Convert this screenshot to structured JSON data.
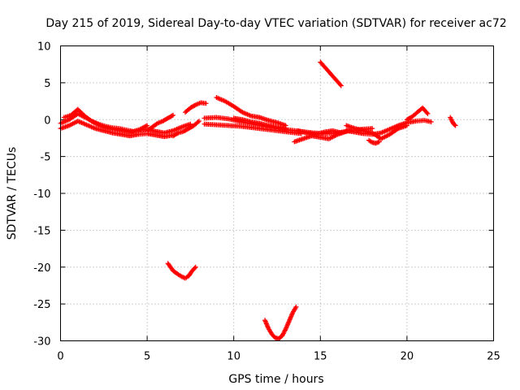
{
  "chart_data": {
    "type": "scatter",
    "title": "Day 215 of 2019, Sidereal Day-to-day VTEC variation (SDTVAR) for receiver ac72",
    "xlabel": "GPS time / hours",
    "ylabel": "SDTVAR / TECUs",
    "xlim": [
      0,
      25
    ],
    "ylim": [
      -30,
      10
    ],
    "xticks": [
      0,
      5,
      10,
      15,
      20,
      25
    ],
    "yticks": [
      -30,
      -25,
      -20,
      -15,
      -10,
      -5,
      0,
      5,
      10
    ],
    "grid": true,
    "marker": "+",
    "series": [
      {
        "name": "SDTVAR",
        "color": "#ff0000",
        "segments": [
          {
            "x": [
              0.0,
              0.5,
              1.0,
              1.5,
              2.0,
              2.5,
              3.0,
              3.5,
              4.0,
              4.5,
              5.0,
              5.5,
              6.0,
              6.5,
              7.0,
              7.5
            ],
            "y": [
              -0.5,
              0.0,
              0.8,
              0.2,
              -0.5,
              -1.0,
              -1.3,
              -1.5,
              -1.7,
              -1.5,
              -1.3,
              -1.6,
              -1.8,
              -1.5,
              -1.0,
              -0.6
            ]
          },
          {
            "x": [
              0.0,
              0.5,
              1.0,
              1.5,
              2.0,
              2.5,
              3.0,
              3.5,
              4.0,
              4.5,
              5.0,
              5.5,
              6.0,
              6.5
            ],
            "y": [
              -1.2,
              -0.8,
              -0.2,
              -0.7,
              -1.2,
              -1.5,
              -1.8,
              -2.0,
              -2.2,
              -2.0,
              -1.9,
              -2.1,
              -2.3,
              -2.1
            ]
          },
          {
            "x": [
              0.2,
              0.6,
              1.0,
              1.4,
              1.8,
              2.2,
              2.6,
              3.0,
              3.4,
              3.8,
              4.2,
              4.6,
              5.0
            ],
            "y": [
              0.3,
              0.6,
              1.4,
              0.5,
              -0.2,
              -0.6,
              -0.9,
              -1.1,
              -1.2,
              -1.4,
              -1.6,
              -1.3,
              -0.8
            ]
          },
          {
            "x": [
              5.0,
              5.3,
              5.6,
              5.9,
              6.2,
              6.5
            ],
            "y": [
              -1.5,
              -1.0,
              -0.5,
              -0.2,
              0.2,
              0.6
            ]
          },
          {
            "x": [
              6.5,
              6.8,
              7.1,
              7.4,
              7.7,
              8.0
            ],
            "y": [
              -2.2,
              -1.8,
              -1.6,
              -1.2,
              -0.8,
              -0.2
            ]
          },
          {
            "x": [
              7.2,
              7.5,
              7.8,
              8.1,
              8.4
            ],
            "y": [
              1.0,
              1.6,
              2.0,
              2.3,
              2.2
            ]
          },
          {
            "x": [
              8.3,
              9.0,
              9.7,
              10.4,
              11.1,
              11.8,
              12.5,
              13.2,
              13.9,
              14.6,
              15.3,
              16.0,
              16.7,
              17.4,
              18.0
            ],
            "y": [
              0.2,
              0.3,
              0.1,
              -0.3,
              -0.6,
              -0.9,
              -1.2,
              -1.4,
              -1.6,
              -1.8,
              -1.9,
              -1.8,
              -1.5,
              -1.3,
              -1.2
            ]
          },
          {
            "x": [
              8.3,
              9.0,
              9.7,
              10.4,
              11.1,
              11.8,
              12.5,
              13.2,
              13.9
            ],
            "y": [
              -0.6,
              -0.7,
              -0.8,
              -0.9,
              -1.1,
              -1.3,
              -1.5,
              -1.7,
              -1.9
            ]
          },
          {
            "x": [
              9.0,
              9.5,
              10.0,
              10.5,
              11.0,
              11.5,
              12.0,
              12.5,
              13.0
            ],
            "y": [
              3.0,
              2.5,
              1.8,
              1.0,
              0.5,
              0.3,
              -0.1,
              -0.4,
              -0.8
            ]
          },
          {
            "x": [
              10.0,
              10.5,
              11.0,
              11.5,
              12.0,
              12.5,
              13.0
            ],
            "y": [
              0.2,
              0.0,
              -0.3,
              -0.5,
              -0.8,
              -1.0,
              -1.2
            ]
          },
          {
            "x": [
              13.5,
              14.0,
              14.5,
              15.0,
              15.5,
              16.0,
              16.5
            ],
            "y": [
              -3.0,
              -2.6,
              -2.2,
              -2.4,
              -2.6,
              -2.0,
              -1.6
            ]
          },
          {
            "x": [
              13.7,
              14.2,
              14.7,
              15.2,
              15.7,
              16.2
            ],
            "y": [
              -1.5,
              -1.8,
              -2.0,
              -1.7,
              -1.5,
              -1.8
            ]
          },
          {
            "x": [
              15.0,
              15.3,
              15.6,
              15.9,
              16.2
            ],
            "y": [
              7.8,
              7.0,
              6.2,
              5.4,
              4.6
            ]
          },
          {
            "x": [
              16.5,
              17.0,
              17.5,
              18.0,
              18.5,
              19.0,
              19.5,
              20.0,
              20.5,
              21.0,
              21.4
            ],
            "y": [
              -1.5,
              -1.7,
              -1.9,
              -2.0,
              -1.8,
              -1.3,
              -0.8,
              -0.4,
              -0.2,
              -0.1,
              -0.3
            ]
          },
          {
            "x": [
              16.5,
              17.0,
              17.5,
              18.0,
              18.5,
              19.0,
              19.5,
              20.0
            ],
            "y": [
              -0.8,
              -1.2,
              -1.5,
              -1.8,
              -2.6,
              -2.0,
              -1.2,
              -0.8
            ]
          },
          {
            "x": [
              17.8,
              18.0,
              18.2,
              18.4
            ],
            "y": [
              -2.8,
              -3.1,
              -3.2,
              -3.0
            ]
          },
          {
            "x": [
              20.0,
              20.3,
              20.6,
              20.9,
              21.2
            ],
            "y": [
              0.0,
              0.4,
              1.0,
              1.6,
              0.8
            ]
          },
          {
            "x": [
              22.5,
              22.6,
              22.7,
              22.8
            ],
            "y": [
              0.3,
              -0.2,
              -0.6,
              -0.8
            ]
          },
          {
            "x": [
              6.2,
              6.5,
              6.8,
              7.0,
              7.2,
              7.4,
              7.6,
              7.8
            ],
            "y": [
              -19.5,
              -20.5,
              -21.0,
              -21.3,
              -21.5,
              -21.2,
              -20.5,
              -20.0
            ]
          },
          {
            "x": [
              11.8,
              12.0,
              12.2,
              12.4,
              12.6,
              12.8,
              13.0,
              13.2,
              13.4,
              13.6
            ],
            "y": [
              -27.2,
              -28.3,
              -29.1,
              -29.6,
              -29.7,
              -29.3,
              -28.4,
              -27.3,
              -26.2,
              -25.4
            ]
          }
        ]
      }
    ]
  }
}
